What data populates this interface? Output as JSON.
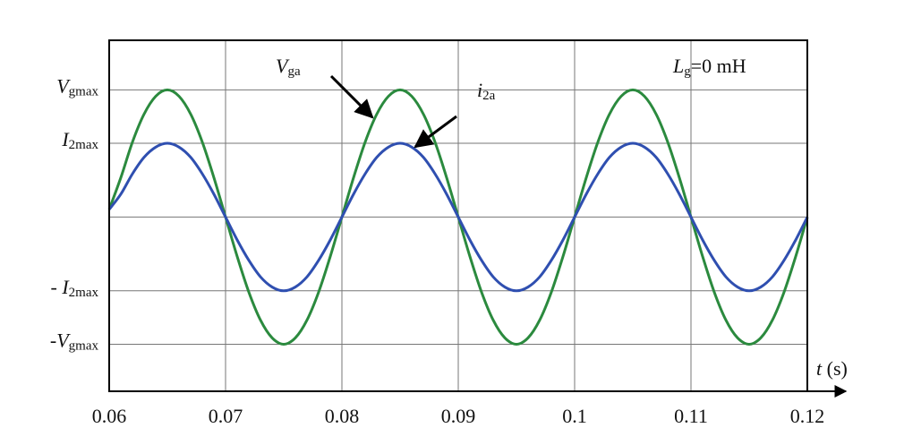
{
  "chart_data": {
    "type": "line",
    "x": [
      0.06,
      0.061,
      0.062,
      0.063,
      0.064,
      0.065,
      0.066,
      0.067,
      0.068,
      0.069,
      0.07,
      0.071,
      0.072,
      0.073,
      0.074,
      0.075,
      0.076,
      0.077,
      0.078,
      0.079,
      0.08,
      0.081,
      0.082,
      0.083,
      0.084,
      0.085,
      0.086,
      0.087,
      0.088,
      0.089,
      0.09,
      0.091,
      0.092,
      0.093,
      0.094,
      0.095,
      0.096,
      0.097,
      0.098,
      0.099,
      0.1,
      0.101,
      0.102,
      0.103,
      0.104,
      0.105,
      0.106,
      0.107,
      0.108,
      0.109,
      0.11,
      0.111,
      0.112,
      0.113,
      0.114,
      0.115,
      0.116,
      0.117,
      0.118,
      0.119,
      0.12
    ],
    "series": [
      {
        "name": "Vga",
        "color": "#2b8a3e",
        "values": [
          0.06,
          0.31,
          0.59,
          0.81,
          0.95,
          1,
          0.95,
          0.81,
          0.59,
          0.31,
          0,
          -0.31,
          -0.59,
          -0.81,
          -0.95,
          -1,
          -0.95,
          -0.81,
          -0.59,
          -0.31,
          0,
          0.31,
          0.59,
          0.81,
          0.95,
          1,
          0.95,
          0.81,
          0.59,
          0.31,
          0,
          -0.31,
          -0.59,
          -0.81,
          -0.95,
          -1,
          -0.95,
          -0.81,
          -0.59,
          -0.31,
          0,
          0.31,
          0.59,
          0.81,
          0.95,
          1,
          0.95,
          0.81,
          0.59,
          0.31,
          0,
          -0.31,
          -0.59,
          -0.81,
          -0.95,
          -1,
          -0.95,
          -0.81,
          -0.59,
          -0.31,
          0
        ]
      },
      {
        "name": "i2a",
        "color": "#2f4fb0",
        "values": [
          0.06,
          0.18,
          0.34,
          0.47,
          0.55,
          0.58,
          0.55,
          0.47,
          0.34,
          0.18,
          0,
          -0.18,
          -0.34,
          -0.47,
          -0.55,
          -0.58,
          -0.55,
          -0.47,
          -0.34,
          -0.18,
          0,
          0.18,
          0.34,
          0.47,
          0.55,
          0.58,
          0.55,
          0.47,
          0.34,
          0.18,
          0,
          -0.18,
          -0.34,
          -0.47,
          -0.55,
          -0.58,
          -0.55,
          -0.47,
          -0.34,
          -0.18,
          0,
          0.18,
          0.34,
          0.47,
          0.55,
          0.58,
          0.55,
          0.47,
          0.34,
          0.18,
          0,
          -0.18,
          -0.34,
          -0.47,
          -0.55,
          -0.58,
          -0.55,
          -0.47,
          -0.34,
          -0.18,
          0
        ]
      }
    ],
    "xlim": [
      0.06,
      0.12
    ],
    "xticks": [
      0.06,
      0.07,
      0.08,
      0.09,
      {
        "value": 0.1,
        "label": "0.1"
      },
      0.11,
      0.12
    ],
    "ylim": [
      -1.37,
      1.39
    ],
    "yticks": [
      {
        "value": -1,
        "label": "-Vgmax"
      },
      {
        "value": -0.58,
        "label": "- I2max"
      },
      {
        "value": 0.58,
        "label": "I2max"
      },
      {
        "value": 1,
        "label": "Vgmax"
      }
    ],
    "xlabel": "t (s)",
    "annotations": [
      "Lg=0 mH"
    ],
    "grid": true
  }
}
